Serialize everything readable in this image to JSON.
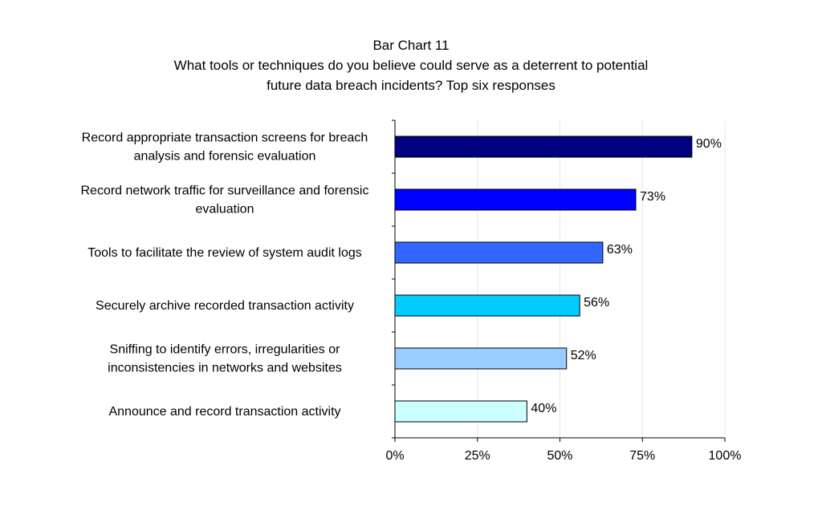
{
  "chart_data": {
    "type": "bar",
    "orientation": "horizontal",
    "title": "Bar Chart 11",
    "subtitle_lines": [
      "What tools or techniques do you believe could serve as a deterrent to potential",
      "future data breach incidents? Top six responses"
    ],
    "categories": [
      [
        "Record appropriate transaction screens for breach",
        "analysis and forensic evaluation"
      ],
      [
        "Record network traffic for surveillance and forensic",
        "evaluation"
      ],
      [
        "Tools to facilitate the review of system audit logs"
      ],
      [
        "Securely archive recorded transaction activity"
      ],
      [
        "Sniffing to identify errors, irregularities or",
        "inconsistencies in networks and websites"
      ],
      [
        "Announce and record transaction activity"
      ]
    ],
    "values": [
      90,
      73,
      63,
      56,
      52,
      40
    ],
    "data_labels": [
      "90%",
      "73%",
      "63%",
      "56%",
      "52%",
      "40%"
    ],
    "bar_colors": [
      "#000080",
      "#0000ff",
      "#3366ff",
      "#00ccff",
      "#99ccff",
      "#ccffff"
    ],
    "xlim": [
      0,
      100
    ],
    "x_ticks": [
      0,
      25,
      50,
      75,
      100
    ],
    "x_tick_labels": [
      "0%",
      "25%",
      "50%",
      "75%",
      "100%"
    ],
    "grid": true,
    "legend": "none"
  }
}
